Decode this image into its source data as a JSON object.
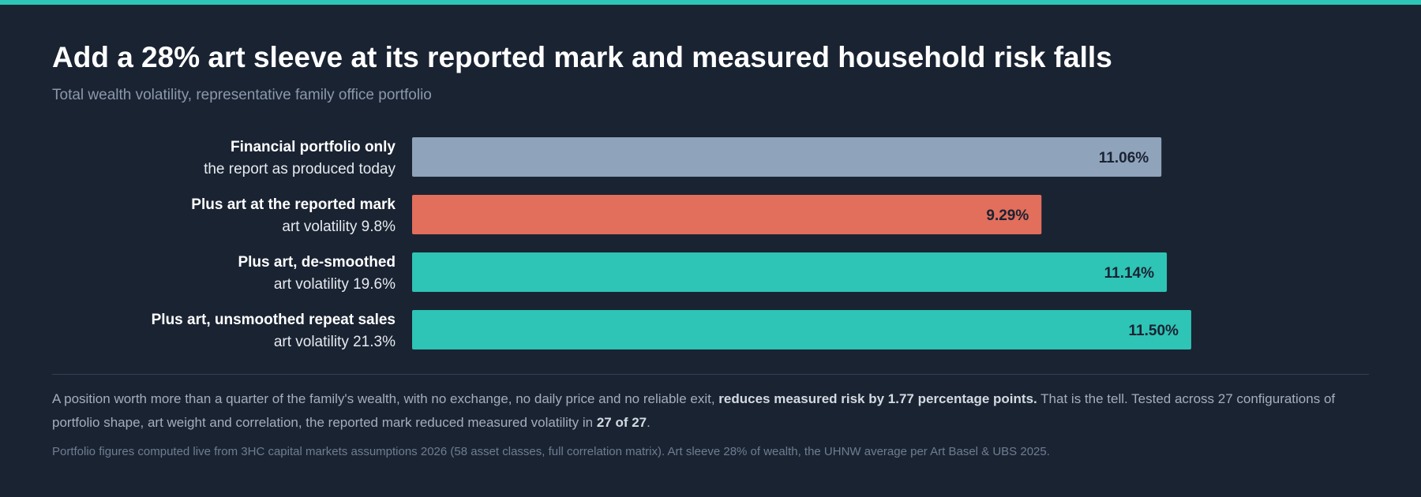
{
  "header": {
    "title": "Add a 28% art sleeve at its reported mark and measured household risk falls",
    "subtitle": "Total wealth volatility, representative family office portfolio"
  },
  "chart_data": {
    "type": "bar",
    "orientation": "horizontal",
    "title": "Add a 28% art sleeve at its reported mark and measured household risk falls",
    "subtitle": "Total wealth volatility, representative family office portfolio",
    "categories": [
      "Financial portfolio only",
      "Plus art at the reported mark",
      "Plus art, de-smoothed",
      "Plus art, unsmoothed repeat sales"
    ],
    "sublabels": [
      "the report as produced today",
      "art volatility 9.8%",
      "art volatility 19.6%",
      "art volatility 21.3%"
    ],
    "values": [
      11.06,
      9.29,
      11.14,
      11.5
    ],
    "value_labels": [
      "11.06%",
      "9.29%",
      "11.14%",
      "11.50%"
    ],
    "colors": [
      "#8fa3bb",
      "#e26e5c",
      "#2ec4b6",
      "#2ec4b6"
    ],
    "value_label_color": "#1a2332",
    "xlim": [
      0,
      13.4
    ],
    "grid": false,
    "legend": "none"
  },
  "summary": {
    "text_1": "A position worth more than a quarter of the family's wealth, with no exchange, no daily price and no reliable exit,",
    "bold_1": "reduces measured risk by 1.77 percentage points.",
    "text_2": "That is the tell. Tested across 27 configurations of portfolio shape, art weight and correlation, the reported mark reduced measured volatility in",
    "bold_2": "27 of 27",
    "text_3": "."
  },
  "footnote": "Portfolio figures computed live from 3HC capital markets assumptions 2026 (58 asset classes, full correlation matrix). Art sleeve 28% of wealth, the UHNW average per Art Basel & UBS 2025.",
  "colors": {
    "background": "#1a2332",
    "accent": "#2ec4b6",
    "muted_text": "#8b98ab"
  }
}
